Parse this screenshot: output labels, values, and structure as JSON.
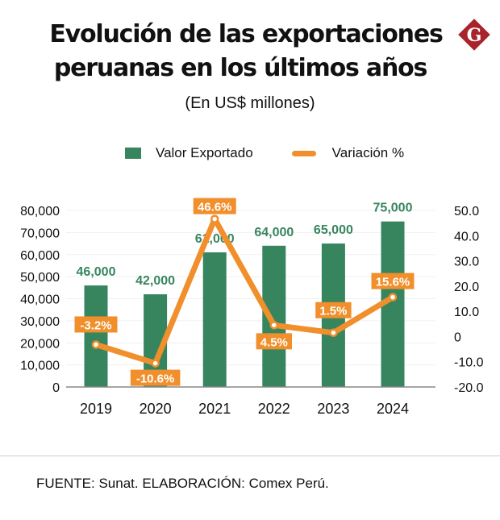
{
  "title_line1": "Evolución de las exportaciones",
  "title_line2": "peruanas en los últimos años",
  "subtitle": "(En US$ millones)",
  "logo": {
    "icon": "gestion-g-logo",
    "letter": "G",
    "color": "#a8232c"
  },
  "legend": {
    "bar_label": "Valor Exportado",
    "line_label": "Variación %"
  },
  "colors": {
    "bar": "#37855f",
    "line": "#f08f2b",
    "bar_label": "#37855f",
    "grid": "#f0f0f0",
    "axis": "#888888"
  },
  "source": "FUENTE: Sunat. ELABORACIÓN: Comex Perú.",
  "chart_data": {
    "type": "bar+line",
    "title": "Evolución de las exportaciones peruanas en los últimos años",
    "subtitle": "(En US$ millones)",
    "categories": [
      "2019",
      "2020",
      "2021",
      "2022",
      "2023",
      "2024"
    ],
    "series": [
      {
        "name": "Valor Exportado",
        "type": "bar",
        "axis": "left",
        "values": [
          46000,
          42000,
          61000,
          64000,
          65000,
          75000
        ],
        "labels": [
          "46,000",
          "42,000",
          "61,000",
          "64,000",
          "65,000",
          "75,000"
        ]
      },
      {
        "name": "Variación %",
        "type": "line",
        "axis": "right",
        "values": [
          -3.2,
          -10.6,
          46.6,
          4.5,
          1.5,
          15.6
        ],
        "labels": [
          "-3.2%",
          "-10.6%",
          "46.6%",
          "4.5%",
          "1.5%",
          "15.6%"
        ]
      }
    ],
    "left_axis": {
      "ylim": [
        0,
        80000
      ],
      "ticks": [
        "0",
        "10,000",
        "20,000",
        "30,000",
        "40,000",
        "50,000",
        "60,000",
        "70,000",
        "80,000"
      ]
    },
    "right_axis": {
      "ylim": [
        -20,
        50
      ],
      "ticks": [
        "-20.0",
        "-10.0",
        "0",
        "10.0",
        "20.0",
        "30.0",
        "40.0",
        "50.0"
      ]
    },
    "grid": true,
    "legend_position": "top-center"
  }
}
